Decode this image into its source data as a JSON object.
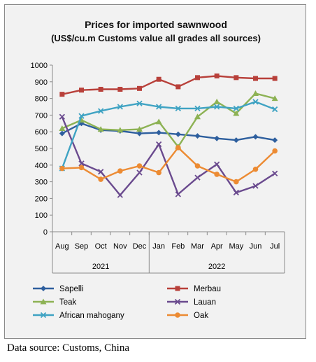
{
  "chart_data": {
    "type": "line",
    "title": "Prices for imported sawnwood",
    "subtitle": "(US$/cu.m Customs value all grades all sources)",
    "x": [
      "Aug",
      "Sep",
      "Oct",
      "Nov",
      "Dec",
      "Jan",
      "Feb",
      "Mar",
      "Apr",
      "May",
      "Jun",
      "Jul"
    ],
    "year_groups": [
      {
        "label": "2021",
        "start": 0,
        "end": 4
      },
      {
        "label": "2022",
        "start": 5,
        "end": 11
      }
    ],
    "ylim": [
      0,
      1000
    ],
    "yticks": [
      0,
      100,
      200,
      300,
      400,
      500,
      600,
      700,
      800,
      900,
      1000
    ],
    "grid": false,
    "legend_position": "bottom",
    "series": [
      {
        "name": "Sapelli",
        "color": "#2e5f9e",
        "marker": "diamond",
        "values": [
          590,
          650,
          610,
          605,
          590,
          595,
          585,
          575,
          560,
          550,
          570,
          550
        ]
      },
      {
        "name": "Merbau",
        "color": "#b8403a",
        "marker": "square",
        "values": [
          825,
          850,
          855,
          855,
          860,
          915,
          870,
          925,
          935,
          925,
          920,
          920
        ]
      },
      {
        "name": "Teak",
        "color": "#8db254",
        "marker": "triangle",
        "values": [
          620,
          670,
          615,
          610,
          615,
          660,
          510,
          690,
          780,
          710,
          830,
          800
        ]
      },
      {
        "name": "Lauan",
        "color": "#6a4a8e",
        "marker": "x",
        "values": [
          690,
          410,
          360,
          220,
          355,
          525,
          225,
          325,
          405,
          235,
          275,
          350
        ]
      },
      {
        "name": "African mahogany",
        "color": "#3fa3c3",
        "marker": "x",
        "values": [
          380,
          695,
          725,
          750,
          770,
          750,
          740,
          740,
          750,
          740,
          780,
          735
        ]
      },
      {
        "name": "Oak",
        "color": "#ec8b33",
        "marker": "circle",
        "values": [
          380,
          385,
          315,
          365,
          395,
          355,
          505,
          395,
          345,
          300,
          375,
          485
        ]
      }
    ]
  },
  "source_note": "Data source: Customs, China"
}
